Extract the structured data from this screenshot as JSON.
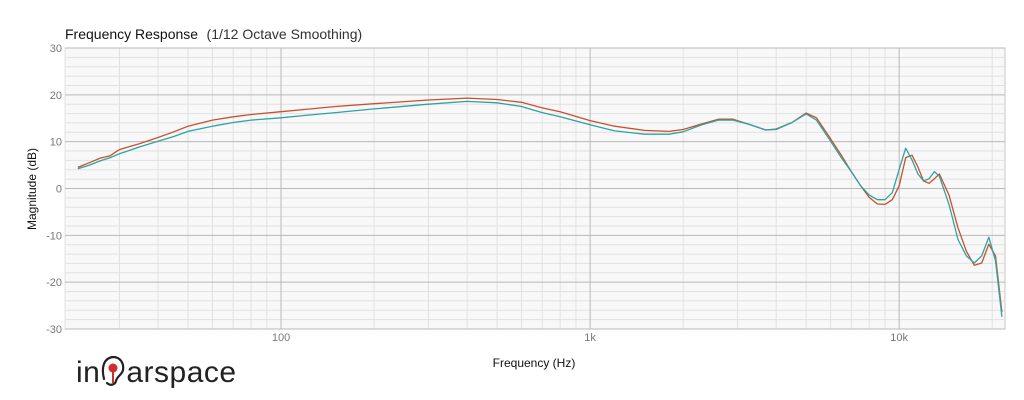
{
  "logo": {
    "text_before": "in",
    "text_after": "arspace",
    "accent_color": "#d22b2b"
  },
  "chart_data": {
    "type": "line",
    "title": "Frequency Response",
    "subtitle": "(1/12 Octave Smoothing)",
    "xlabel": "Frequency (Hz)",
    "ylabel": "Magnitude (dB)",
    "x_scale": "log",
    "xlim": [
      20,
      22000
    ],
    "ylim": [
      -30,
      30
    ],
    "x_ticks": [
      {
        "value": 100,
        "label": "100"
      },
      {
        "value": 1000,
        "label": "1k"
      },
      {
        "value": 10000,
        "label": "10k"
      }
    ],
    "y_ticks": [
      {
        "value": 30,
        "label": "30"
      },
      {
        "value": 20,
        "label": "20"
      },
      {
        "value": 10,
        "label": "10"
      },
      {
        "value": 0,
        "label": "0"
      },
      {
        "value": -10,
        "label": "-10"
      },
      {
        "value": -20,
        "label": "-20"
      },
      {
        "value": -30,
        "label": "-30"
      }
    ],
    "grid": true,
    "series": [
      {
        "color": "#c8502e",
        "points": [
          [
            22,
            4.5
          ],
          [
            24,
            5.5
          ],
          [
            26,
            6.5
          ],
          [
            28,
            7
          ],
          [
            30,
            8.3
          ],
          [
            35,
            9.6
          ],
          [
            40,
            10.9
          ],
          [
            45,
            12.1
          ],
          [
            50,
            13.3
          ],
          [
            60,
            14.6
          ],
          [
            70,
            15.3
          ],
          [
            80,
            15.8
          ],
          [
            100,
            16.4
          ],
          [
            120,
            16.9
          ],
          [
            150,
            17.5
          ],
          [
            200,
            18.1
          ],
          [
            300,
            18.9
          ],
          [
            400,
            19.3
          ],
          [
            500,
            19
          ],
          [
            600,
            18.4
          ],
          [
            700,
            17.2
          ],
          [
            800,
            16.4
          ],
          [
            1000,
            14.5
          ],
          [
            1200,
            13.3
          ],
          [
            1500,
            12.4
          ],
          [
            1800,
            12.2
          ],
          [
            2000,
            12.6
          ],
          [
            2300,
            13.8
          ],
          [
            2600,
            14.8
          ],
          [
            2900,
            14.8
          ],
          [
            3300,
            13.6
          ],
          [
            3700,
            12.5
          ],
          [
            4000,
            12.7
          ],
          [
            4500,
            14.1
          ],
          [
            5000,
            16.1
          ],
          [
            5400,
            15.1
          ],
          [
            6000,
            10.6
          ],
          [
            6500,
            7.1
          ],
          [
            7000,
            3.6
          ],
          [
            7500,
            0.6
          ],
          [
            8000,
            -1.9
          ],
          [
            8500,
            -3.3
          ],
          [
            9000,
            -3.4
          ],
          [
            9500,
            -2.4
          ],
          [
            10000,
            0.6
          ],
          [
            10500,
            6.6
          ],
          [
            11000,
            7.1
          ],
          [
            11500,
            4.6
          ],
          [
            12000,
            1.6
          ],
          [
            12500,
            1.1
          ],
          [
            13000,
            2.1
          ],
          [
            13500,
            3.1
          ],
          [
            14500,
            -1.4
          ],
          [
            15500,
            -8.4
          ],
          [
            16500,
            -13.4
          ],
          [
            17500,
            -16.4
          ],
          [
            18500,
            -15.9
          ],
          [
            19500,
            -11.9
          ],
          [
            20500,
            -14.4
          ],
          [
            21500,
            -26.4
          ]
        ]
      },
      {
        "color": "#2ea3a3",
        "points": [
          [
            22,
            4.2
          ],
          [
            24,
            5
          ],
          [
            26,
            5.9
          ],
          [
            28,
            6.6
          ],
          [
            30,
            7.4
          ],
          [
            35,
            8.9
          ],
          [
            40,
            10.1
          ],
          [
            45,
            11.1
          ],
          [
            50,
            12.2
          ],
          [
            60,
            13.3
          ],
          [
            70,
            14.1
          ],
          [
            80,
            14.6
          ],
          [
            100,
            15.1
          ],
          [
            120,
            15.6
          ],
          [
            150,
            16.2
          ],
          [
            200,
            17
          ],
          [
            300,
            18
          ],
          [
            400,
            18.6
          ],
          [
            500,
            18.3
          ],
          [
            600,
            17.5
          ],
          [
            700,
            16.2
          ],
          [
            800,
            15.3
          ],
          [
            1000,
            13.6
          ],
          [
            1200,
            12.3
          ],
          [
            1500,
            11.6
          ],
          [
            1800,
            11.6
          ],
          [
            2000,
            12.1
          ],
          [
            2300,
            13.6
          ],
          [
            2600,
            14.6
          ],
          [
            2900,
            14.6
          ],
          [
            3300,
            13.6
          ],
          [
            3700,
            12.5
          ],
          [
            4000,
            12.6
          ],
          [
            4500,
            14.1
          ],
          [
            5000,
            15.9
          ],
          [
            5400,
            14.6
          ],
          [
            6000,
            10.1
          ],
          [
            6500,
            6.6
          ],
          [
            7000,
            3.6
          ],
          [
            7500,
            0.6
          ],
          [
            8000,
            -1.4
          ],
          [
            8500,
            -2.4
          ],
          [
            9000,
            -2.4
          ],
          [
            9500,
            -0.9
          ],
          [
            10000,
            4.1
          ],
          [
            10500,
            8.6
          ],
          [
            11000,
            6.1
          ],
          [
            11500,
            3.1
          ],
          [
            12000,
            1.6
          ],
          [
            12500,
            2.1
          ],
          [
            13000,
            3.6
          ],
          [
            13500,
            2.6
          ],
          [
            14500,
            -3.4
          ],
          [
            15500,
            -10.9
          ],
          [
            16500,
            -14.4
          ],
          [
            17500,
            -15.9
          ],
          [
            18500,
            -14.4
          ],
          [
            19500,
            -10.4
          ],
          [
            20500,
            -15.4
          ],
          [
            21500,
            -27.4
          ]
        ]
      }
    ]
  }
}
